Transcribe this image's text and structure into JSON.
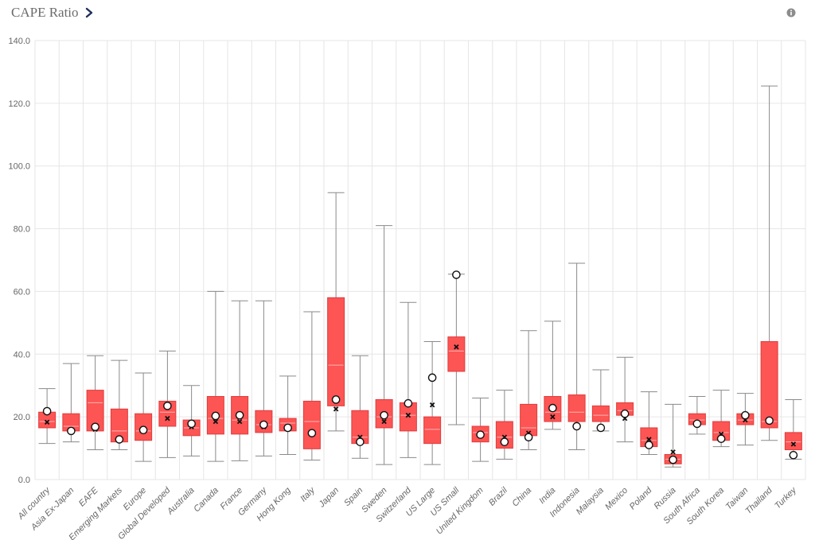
{
  "header": {
    "title": "CAPE Ratio",
    "chevron_icon": "chevron-right-icon",
    "info_icon": "info-icon"
  },
  "colors": {
    "box_fill": "#fd5454",
    "box_stroke": "#e03c3c",
    "whisker": "#8a8a8a",
    "median": "#ffb3b3",
    "grid": "#e6e6e6",
    "accent": "#1e2f5a"
  },
  "chart_data": {
    "type": "box",
    "ylim": [
      0,
      140
    ],
    "yticks": [
      "0.0",
      "20.0",
      "40.0",
      "60.0",
      "80.0",
      "100.0",
      "120.0",
      "140.0"
    ],
    "ytick_values": [
      0,
      20,
      40,
      60,
      80,
      100,
      120,
      140
    ],
    "grid": true,
    "markers": {
      "circle": "current value",
      "x": "mean"
    },
    "categories": [
      "All country",
      "Asia Ex-Japan",
      "EAFE",
      "Emerging Markets",
      "Europe",
      "Global Developed",
      "Australia",
      "Canada",
      "France",
      "Germany",
      "Hong Kong",
      "Italy",
      "Japan",
      "Spain",
      "Sweden",
      "Switzerland",
      "US Large",
      "US Small",
      "United Kingdom",
      "Brazil",
      "China",
      "India",
      "Indonesia",
      "Malaysia",
      "Mexico",
      "Poland",
      "Russia",
      "South Africa",
      "South Korea",
      "Taiwan",
      "Thailand",
      "Turkey"
    ],
    "series": [
      {
        "min": 11.5,
        "q1": 16.5,
        "median": 18.5,
        "q3": 21.5,
        "max": 29.0,
        "mean": 18.3,
        "current": 21.8
      },
      {
        "min": 12.0,
        "q1": 15.5,
        "median": 17.0,
        "q3": 21.0,
        "max": 37.0,
        "mean": 15.8,
        "current": 15.5
      },
      {
        "min": 9.5,
        "q1": 15.5,
        "median": 24.5,
        "q3": 28.5,
        "max": 39.5,
        "mean": 16.0,
        "current": 16.8
      },
      {
        "min": 9.5,
        "q1": 12.0,
        "median": 15.5,
        "q3": 22.5,
        "max": 38.0,
        "mean": 13.2,
        "current": 12.8
      },
      {
        "min": 5.8,
        "q1": 12.5,
        "median": 15.5,
        "q3": 21.0,
        "max": 34.0,
        "mean": 15.5,
        "current": 15.8
      },
      {
        "min": 7.0,
        "q1": 17.0,
        "median": 21.5,
        "q3": 25.0,
        "max": 41.0,
        "mean": 19.5,
        "current": 23.5
      },
      {
        "min": 7.5,
        "q1": 14.0,
        "median": 16.5,
        "q3": 19.0,
        "max": 30.0,
        "mean": 16.8,
        "current": 17.8
      },
      {
        "min": 5.8,
        "q1": 14.5,
        "median": 19.5,
        "q3": 26.5,
        "max": 60.0,
        "mean": 18.5,
        "current": 20.3
      },
      {
        "min": 6.0,
        "q1": 14.5,
        "median": 19.0,
        "q3": 26.5,
        "max": 57.0,
        "mean": 18.5,
        "current": 20.5
      },
      {
        "min": 7.5,
        "q1": 15.0,
        "median": 17.5,
        "q3": 22.0,
        "max": 57.0,
        "mean": 16.8,
        "current": 17.5
      },
      {
        "min": 8.0,
        "q1": 15.5,
        "median": 18.0,
        "q3": 19.5,
        "max": 33.0,
        "mean": 16.5,
        "current": 16.5
      },
      {
        "min": 6.2,
        "q1": 9.8,
        "median": 18.5,
        "q3": 25.0,
        "max": 53.5,
        "mean": 15.0,
        "current": 14.8
      },
      {
        "min": 15.5,
        "q1": 23.5,
        "median": 36.5,
        "q3": 58.0,
        "max": 91.5,
        "mean": 22.5,
        "current": 25.5
      },
      {
        "min": 6.8,
        "q1": 11.5,
        "median": 13.5,
        "q3": 22.0,
        "max": 39.5,
        "mean": 13.5,
        "current": 12.0
      },
      {
        "min": 4.8,
        "q1": 16.5,
        "median": 20.0,
        "q3": 25.5,
        "max": 81.0,
        "mean": 18.5,
        "current": 20.5
      },
      {
        "min": 7.0,
        "q1": 15.5,
        "median": 20.5,
        "q3": 24.5,
        "max": 56.5,
        "mean": 20.5,
        "current": 24.3
      },
      {
        "min": 4.8,
        "q1": 11.5,
        "median": 16.0,
        "q3": 20.0,
        "max": 44.0,
        "mean": 23.8,
        "current": 32.5
      },
      {
        "min": 17.5,
        "q1": 34.5,
        "median": 41.0,
        "q3": 45.5,
        "max": 65.5,
        "mean": 42.3,
        "current": 65.3
      },
      {
        "min": 5.8,
        "q1": 12.0,
        "median": 15.0,
        "q3": 17.0,
        "max": 26.0,
        "mean": 14.2,
        "current": 14.3
      },
      {
        "min": 6.5,
        "q1": 10.0,
        "median": 13.5,
        "q3": 18.5,
        "max": 28.5,
        "mean": 13.5,
        "current": 12.0
      },
      {
        "min": 9.5,
        "q1": 14.0,
        "median": 16.5,
        "q3": 24.0,
        "max": 47.5,
        "mean": 14.8,
        "current": 13.5
      },
      {
        "min": 16.0,
        "q1": 18.5,
        "median": 21.5,
        "q3": 26.5,
        "max": 50.5,
        "mean": 20.0,
        "current": 22.8
      },
      {
        "min": 9.5,
        "q1": 18.5,
        "median": 21.5,
        "q3": 27.0,
        "max": 69.0,
        "mean": 17.0,
        "current": 17.0
      },
      {
        "min": 15.5,
        "q1": 18.5,
        "median": 20.5,
        "q3": 23.5,
        "max": 35.0,
        "mean": 16.5,
        "current": 16.5
      },
      {
        "min": 12.0,
        "q1": 20.5,
        "median": 22.0,
        "q3": 24.5,
        "max": 39.0,
        "mean": 19.5,
        "current": 21.0
      },
      {
        "min": 8.0,
        "q1": 10.5,
        "median": 12.5,
        "q3": 16.5,
        "max": 28.0,
        "mean": 12.8,
        "current": 11.0
      },
      {
        "min": 4.0,
        "q1": 5.0,
        "median": 6.5,
        "q3": 8.0,
        "max": 24.0,
        "mean": 8.8,
        "current": 6.3
      },
      {
        "min": 14.5,
        "q1": 17.5,
        "median": 19.0,
        "q3": 21.0,
        "max": 26.5,
        "mean": 17.5,
        "current": 17.8
      },
      {
        "min": 10.5,
        "q1": 12.5,
        "median": 15.0,
        "q3": 18.5,
        "max": 28.5,
        "mean": 14.5,
        "current": 13.0
      },
      {
        "min": 11.0,
        "q1": 17.5,
        "median": 19.0,
        "q3": 21.0,
        "max": 27.5,
        "mean": 19.0,
        "current": 20.5
      },
      {
        "min": 12.5,
        "q1": 16.5,
        "median": 18.5,
        "q3": 44.0,
        "max": 125.5,
        "mean": 18.8,
        "current": 18.8
      },
      {
        "min": 6.5,
        "q1": 9.5,
        "median": 12.0,
        "q3": 15.0,
        "max": 25.5,
        "mean": 11.3,
        "current": 7.8
      }
    ]
  }
}
